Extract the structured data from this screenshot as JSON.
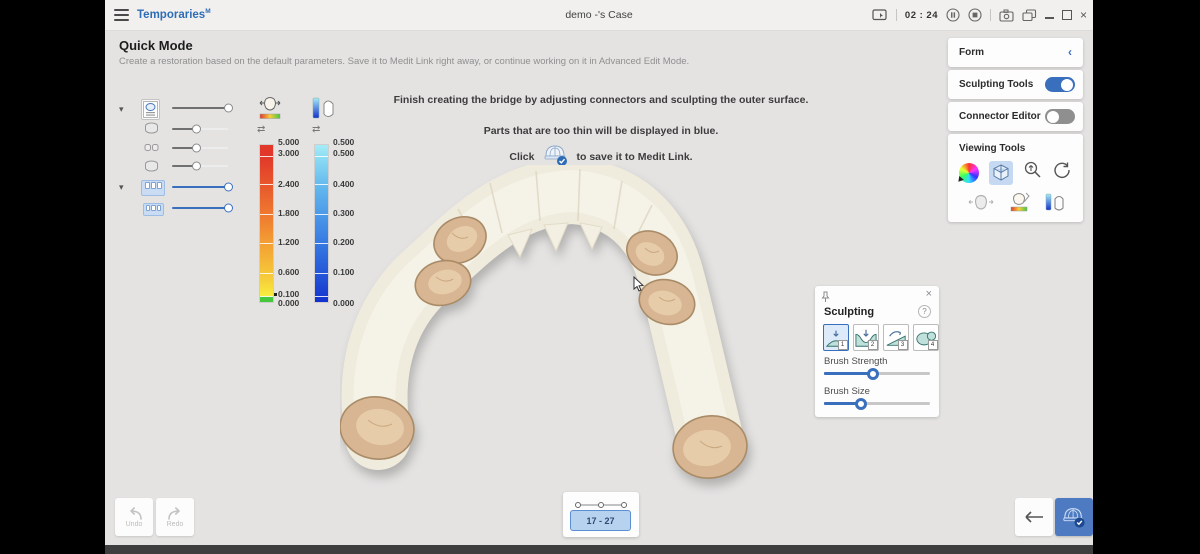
{
  "titlebar": {
    "app_name": "Temporaries",
    "app_mark": "M",
    "case_title": "demo -'s Case",
    "timer": "02 : 24"
  },
  "header": {
    "title": "Quick Mode",
    "subtitle": "Create a restoration based on the default parameters. Save it to Medit Link right away, or continue working on it in Advanced Edit Mode."
  },
  "messages": {
    "line1": "Finish creating the bridge by adjusting connectors and sculpting the outer surface.",
    "line2": "Parts that are too thin will be displayed in blue.",
    "click_prefix": "Click",
    "click_suffix": "to save it to Medit Link."
  },
  "layers": {
    "items": [
      {
        "icon": "restoration-document-icon",
        "value": 100,
        "theme": "gray"
      },
      {
        "icon": "preop-model-icon",
        "value": 42,
        "theme": "gray"
      },
      {
        "icon": "adjacent-teeth-icon",
        "value": 42,
        "theme": "gray"
      },
      {
        "icon": "gingiva-model-icon",
        "value": 42,
        "theme": "gray"
      },
      {
        "icon": "upper-arch-icon",
        "value": 100,
        "theme": "blue"
      },
      {
        "icon": "lower-arch-icon",
        "value": 100,
        "theme": "blue"
      }
    ]
  },
  "scales": [
    {
      "id": "scale-a",
      "labels": [
        "5.000",
        "3.000",
        "2.400",
        "1.800",
        "1.200",
        "0.600",
        "0.100",
        "0.000"
      ],
      "gradient": [
        "#e1382a",
        "#ee7a2f",
        "#f4a635",
        "#f6cf3a",
        "#45c83e"
      ]
    },
    {
      "id": "scale-b",
      "labels": [
        "0.500",
        "0.500",
        "0.400",
        "0.300",
        "0.200",
        "0.100",
        "0.000"
      ],
      "gradient": [
        "#a5ecf8",
        "#64b9ee",
        "#3373e0",
        "#1331cd"
      ]
    }
  ],
  "sidebar": {
    "form": {
      "label": "Form"
    },
    "sculpting_tools": {
      "label": "Sculpting Tools",
      "enabled": true
    },
    "connector_editor": {
      "label": "Connector Editor",
      "enabled": false
    },
    "viewing_tools": {
      "label": "Viewing Tools"
    }
  },
  "sculpting": {
    "title": "Sculpting",
    "help": "?",
    "tools": [
      {
        "badge": "1",
        "name": "add-tool",
        "selected": true
      },
      {
        "badge": "2",
        "name": "remove-tool",
        "selected": false
      },
      {
        "badge": "3",
        "name": "smooth-tool",
        "selected": false
      },
      {
        "badge": "4",
        "name": "morph-tool",
        "selected": false
      }
    ],
    "brush_strength": {
      "label": "Brush Strength",
      "value": 46
    },
    "brush_size": {
      "label": "Brush Size",
      "value": 35
    }
  },
  "footer": {
    "undo": "Undo",
    "redo": "Redo",
    "range": "17 - 27"
  },
  "icons": {
    "close_glyph": "×",
    "form_chevron": "‹",
    "settings_glyph": "⇄",
    "caret_glyph": "▾",
    "accent_color": "#3a6fbe",
    "save_button_color": "#4e7ac2"
  }
}
